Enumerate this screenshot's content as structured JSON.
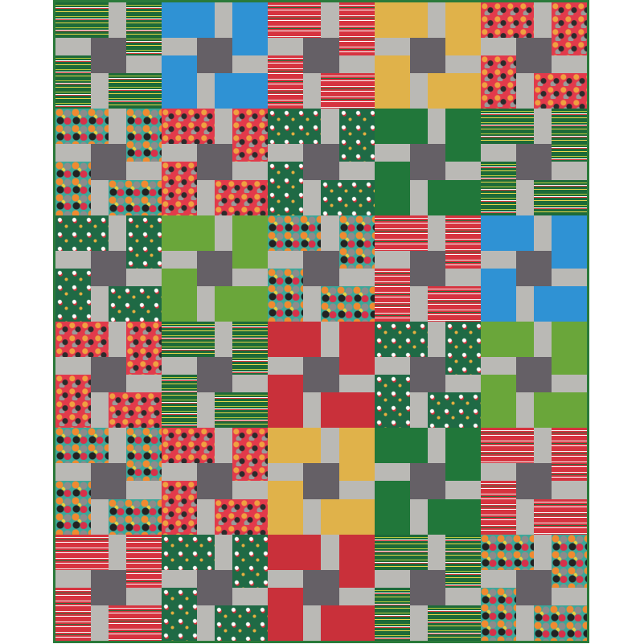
{
  "quilt": {
    "border_color": "#2a7a3a",
    "sashing_light_gray": "#bab9b5",
    "center_dark_gray": "#656066",
    "solid_colors": {
      "blue": "#2f92d4",
      "gold": "#e0b24a",
      "dark-green": "#21773a",
      "lime": "#6aa63a",
      "red": "#c9303a"
    },
    "printed_fabrics": [
      "green-stripes",
      "red-stripes",
      "red-cats",
      "multi-cats",
      "green-santa"
    ],
    "rows": [
      [
        "green-stripes",
        "blue",
        "red-stripes",
        "gold",
        "red-cats"
      ],
      [
        "multi-cats",
        "red-cats",
        "green-santa",
        "dark-green",
        "green-stripes"
      ],
      [
        "green-santa",
        "lime",
        "multi-cats",
        "red-stripes",
        "blue"
      ],
      [
        "red-cats",
        "green-stripes",
        "red",
        "green-santa",
        "lime"
      ],
      [
        "multi-cats",
        "red-cats",
        "gold",
        "dark-green",
        "red-stripes"
      ],
      [
        "red-stripes",
        "green-santa",
        "red",
        "green-stripes",
        "multi-cats"
      ]
    ]
  }
}
